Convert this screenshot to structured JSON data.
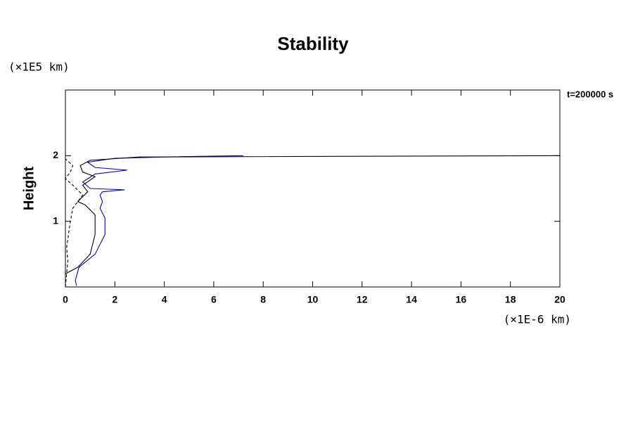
{
  "chart_data": {
    "type": "line",
    "title": "Stability",
    "ylabel": "Height",
    "y_unit": "(×1E5 km)",
    "x_unit": "(×1E-6 km)",
    "annotation": "t=200000 s",
    "xlim": [
      0,
      20
    ],
    "ylim": [
      0,
      3
    ],
    "xticks": [
      0,
      2,
      4,
      6,
      8,
      10,
      12,
      14,
      16,
      18,
      20
    ],
    "yticks": [
      1,
      2
    ],
    "series": [
      {
        "color": "#0000cc",
        "dash": false,
        "x": [
          0.45,
          0.4,
          0.55,
          1.2,
          1.6,
          1.6,
          1.4,
          1.5,
          1.4,
          1.5,
          2.4,
          1.0,
          0.7,
          1.2,
          2.5,
          1.2,
          0.9,
          2.0,
          4.0,
          7.2
        ],
        "values": [
          0.02,
          0.1,
          0.3,
          0.5,
          0.8,
          1.05,
          1.2,
          1.3,
          1.4,
          1.45,
          1.48,
          1.5,
          1.6,
          1.72,
          1.78,
          1.82,
          1.9,
          1.96,
          1.98,
          2.0
        ]
      },
      {
        "color": "#000000",
        "dash": false,
        "x": [
          0.0,
          0.5,
          1.0,
          1.2,
          1.2,
          0.8,
          0.5,
          0.9,
          0.7,
          1.2,
          0.7,
          0.6,
          1.0,
          3.0,
          20.0
        ],
        "values": [
          0.2,
          0.3,
          0.5,
          0.8,
          1.1,
          1.25,
          1.3,
          1.45,
          1.55,
          1.68,
          1.75,
          1.85,
          1.93,
          1.98,
          2.0
        ]
      },
      {
        "color": "#000000",
        "dash": true,
        "x": [
          0.0,
          0.1,
          0.05,
          0.2,
          0.3,
          0.7,
          0.3,
          0.0,
          0.2,
          0.3,
          0.0
        ],
        "values": [
          0.0,
          0.4,
          0.6,
          1.0,
          1.2,
          1.4,
          1.55,
          1.65,
          1.75,
          1.85,
          1.95
        ]
      }
    ]
  }
}
